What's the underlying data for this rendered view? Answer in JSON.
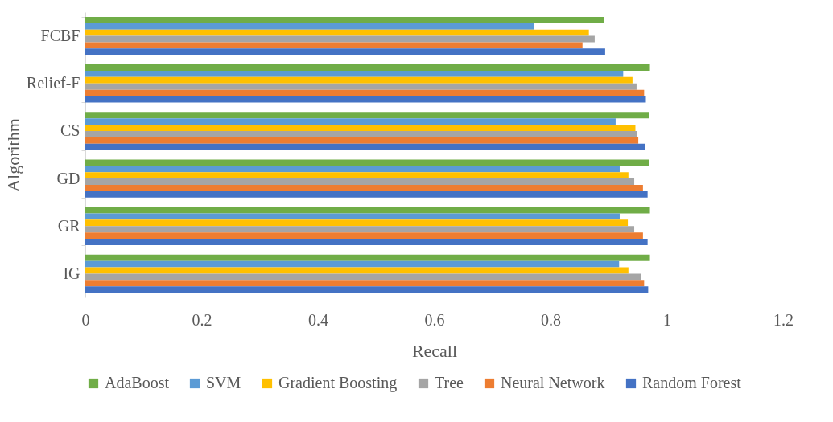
{
  "chart_data": {
    "type": "bar",
    "orientation": "horizontal",
    "xlabel": "Recall",
    "ylabel": "Algorithm",
    "categories": [
      "FCBF",
      "Relief-F",
      "CS",
      "GD",
      "GR",
      "IG"
    ],
    "series": [
      {
        "name": "AdaBoost",
        "color": "#70ad47",
        "values": [
          0.892,
          0.971,
          0.97,
          0.97,
          0.971,
          0.971
        ]
      },
      {
        "name": "SVM",
        "color": "#5b9bd5",
        "values": [
          0.772,
          0.925,
          0.912,
          0.919,
          0.919,
          0.918
        ]
      },
      {
        "name": "Gradient Boosting",
        "color": "#ffc000",
        "values": [
          0.866,
          0.941,
          0.946,
          0.934,
          0.933,
          0.934
        ]
      },
      {
        "name": "Tree",
        "color": "#a5a5a5",
        "values": [
          0.876,
          0.948,
          0.949,
          0.944,
          0.944,
          0.956
        ]
      },
      {
        "name": "Neural Network",
        "color": "#ed7d31",
        "values": [
          0.855,
          0.961,
          0.951,
          0.959,
          0.959,
          0.961
        ]
      },
      {
        "name": "Random Forest",
        "color": "#4472c4",
        "values": [
          0.894,
          0.964,
          0.963,
          0.967,
          0.967,
          0.968
        ]
      }
    ],
    "xlim": [
      0,
      1.2
    ],
    "xticks": [
      0,
      0.2,
      0.4,
      0.6,
      0.8,
      1,
      1.2
    ],
    "grid": false,
    "legend": "bottom"
  }
}
